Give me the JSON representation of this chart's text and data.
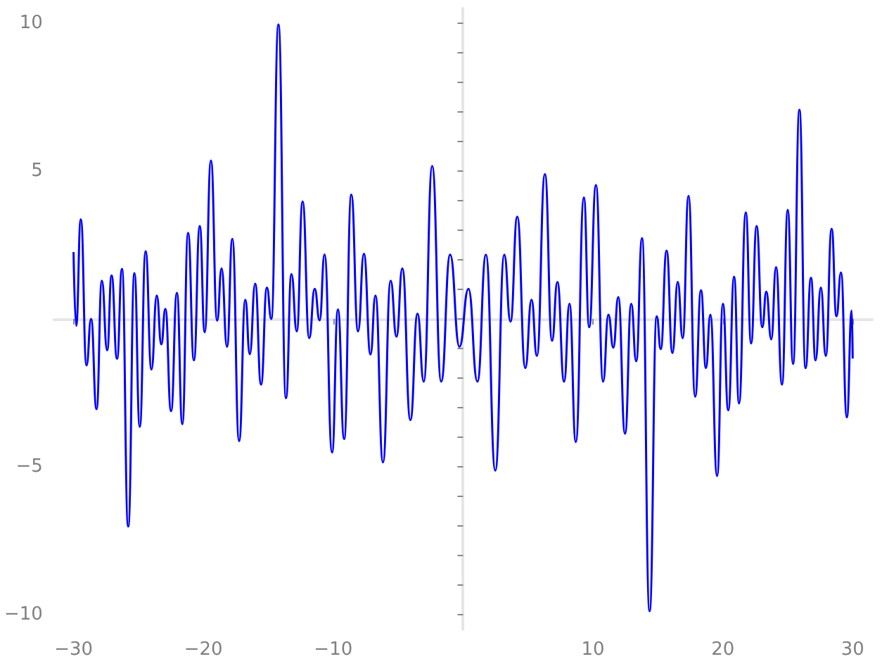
{
  "chart_data": {
    "type": "line",
    "color": "#0000ff",
    "x": [
      -30.0,
      -29.8,
      -29.44,
      -29.0,
      -28.65,
      -28.23,
      -27.82,
      -27.41,
      -27.07,
      -26.65,
      -26.27,
      -25.79,
      -25.31,
      -24.9,
      -24.45,
      -24.0,
      -23.59,
      -23.24,
      -22.93,
      -22.49,
      -22.04,
      -21.62,
      -21.18,
      -20.73,
      -20.28,
      -19.9,
      -19.42,
      -18.94,
      -18.6,
      -18.18,
      -17.77,
      -17.25,
      -16.77,
      -16.43,
      -16.01,
      -15.56,
      -15.11,
      -14.77,
      -14.22,
      -13.64,
      -13.22,
      -12.81,
      -12.36,
      -11.85,
      -11.43,
      -11.05,
      -10.67,
      -10.09,
      -9.64,
      -9.16,
      -8.61,
      -8.09,
      -7.64,
      -7.13,
      -6.75,
      -6.17,
      -5.58,
      -5.13,
      -4.68,
      -4.06,
      -3.51,
      -3.03,
      -2.38,
      -1.69,
      -1.0,
      -0.28,
      0.41,
      1.1,
      1.76,
      2.48,
      3.17,
      3.65,
      4.17,
      4.79,
      5.27,
      5.68,
      6.3,
      6.85,
      7.26,
      7.78,
      8.19,
      8.68,
      9.3,
      9.71,
      10.23,
      10.78,
      11.19,
      11.57,
      11.95,
      12.47,
      12.95,
      13.33,
      13.78,
      14.36,
      14.91,
      15.22,
      15.67,
      16.12,
      16.53,
      16.91,
      17.36,
      17.87,
      18.32,
      18.7,
      19.04,
      19.56,
      20.01,
      20.42,
      20.87,
      21.25,
      21.77,
      22.18,
      22.6,
      23.04,
      23.35,
      23.73,
      24.1,
      24.56,
      25.0,
      25.41,
      25.9,
      26.37,
      26.79,
      27.14,
      27.55,
      27.93,
      28.38,
      28.75,
      29.1,
      29.55,
      29.93,
      30.0
    ],
    "values": [
      2.26,
      -0.23,
      3.37,
      -1.57,
      0.0,
      -3.05,
      1.29,
      -1.06,
      1.47,
      -1.35,
      1.69,
      -7.02,
      1.55,
      -3.65,
      2.29,
      -1.71,
      0.79,
      -0.86,
      0.34,
      -3.12,
      0.88,
      -3.56,
      2.91,
      -1.4,
      3.14,
      -0.45,
      5.36,
      -0.06,
      1.71,
      -0.94,
      2.71,
      -4.13,
      0.65,
      -1.19,
      1.19,
      -2.22,
      1.06,
      0.0,
      9.96,
      -2.68,
      1.52,
      -0.42,
      3.97,
      -0.65,
      1.02,
      -0.05,
      2.18,
      -4.52,
      0.32,
      -4.06,
      4.2,
      -0.42,
      2.2,
      -1.2,
      0.79,
      -4.85,
      1.29,
      -0.6,
      1.71,
      -3.42,
      0.18,
      -2.12,
      5.17,
      -2.12,
      2.17,
      -0.94,
      1.02,
      -2.12,
      2.17,
      -5.13,
      2.17,
      -0.09,
      3.46,
      -1.66,
      0.65,
      -1.25,
      4.9,
      -0.74,
      1.25,
      -2.12,
      0.51,
      -4.16,
      4.11,
      -0.28,
      4.53,
      -2.12,
      0.14,
      -0.97,
      0.74,
      -3.88,
      0.51,
      -1.43,
      2.73,
      -9.88,
      0.09,
      -1.02,
      2.31,
      -1.15,
      1.25,
      -0.65,
      4.16,
      -2.63,
      0.97,
      -1.66,
      0.14,
      -5.31,
      0.51,
      -3.09,
      1.43,
      -2.86,
      3.6,
      -0.83,
      3.14,
      -0.28,
      0.92,
      -0.69,
      1.75,
      -2.22,
      3.69,
      -1.52,
      7.07,
      -1.66,
      1.39,
      -1.4,
      1.06,
      -1.25,
      3.05,
      0.09,
      1.57,
      -3.33,
      0.28,
      -1.34
    ],
    "xlim": [
      -31.5,
      31.5
    ],
    "ylim": [
      -10.5,
      10.5
    ],
    "xticks": [
      {
        "value": -30,
        "label": "−30"
      },
      {
        "value": -20,
        "label": "−20"
      },
      {
        "value": -10,
        "label": "−10"
      },
      {
        "value": 0,
        "label": null
      },
      10,
      20,
      30
    ],
    "yticks": [
      {
        "value": -10,
        "label": "−10"
      },
      {
        "value": -9,
        "label": null
      },
      {
        "value": -8,
        "label": null
      },
      {
        "value": -7,
        "label": null
      },
      {
        "value": -6,
        "label": null
      },
      {
        "value": -5,
        "label": "−5"
      },
      {
        "value": -4,
        "label": null
      },
      {
        "value": -3,
        "label": null
      },
      {
        "value": -2,
        "label": null
      },
      {
        "value": -1,
        "label": null
      },
      {
        "value": 0,
        "label": null
      },
      {
        "value": 1,
        "label": null
      },
      {
        "value": 2,
        "label": null
      },
      {
        "value": 3,
        "label": null
      },
      {
        "value": 4,
        "label": null
      },
      5,
      {
        "value": 6,
        "label": null
      },
      {
        "value": 7,
        "label": null
      },
      {
        "value": 8,
        "label": null
      },
      {
        "value": 9,
        "label": null
      },
      10
    ]
  }
}
